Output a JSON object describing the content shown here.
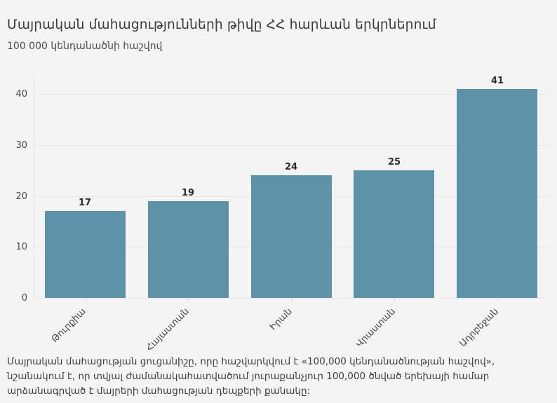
{
  "page": {
    "background_color": "#f4f4f4"
  },
  "header": {
    "title": "Մայրական մահացությունների թիվը ՀՀ հարևան երկրներում",
    "subtitle": "100 000 կենդանածնի հաշվով"
  },
  "chart_data": {
    "type": "bar",
    "title": "Մայրական մահացությունների թիվը ՀՀ հարևան երկրներում",
    "subtitle": "100 000 կենդանածնի հաշվով",
    "categories": [
      "Թուրքիա",
      "Հայաստան",
      "Իրան",
      "Վրաստան",
      "Ադրբեջան"
    ],
    "values": [
      17,
      19,
      24,
      25,
      41
    ],
    "value_labels": [
      "17",
      "19",
      "24",
      "25",
      "41"
    ],
    "xlabel": "",
    "ylabel": "",
    "ylim": [
      0,
      44
    ],
    "yticks": [
      0,
      10,
      20,
      30,
      40
    ],
    "grid": true,
    "legend": "none",
    "bar_color": "#5d92a8",
    "gridline_color": "#e7e7e7"
  },
  "caption": {
    "text": "Մայրական մահացության ցուցանիշը, որը հաշվարկվում է «100,000 կենդանածնության հաշվով», նշանակում է, որ տվյալ ժամանակահատվածում յուրաքանչյուր 100,000 ծնված երեխայի համար արձանագրված է մայրերի մահացության դեպքերի քանակը:"
  }
}
